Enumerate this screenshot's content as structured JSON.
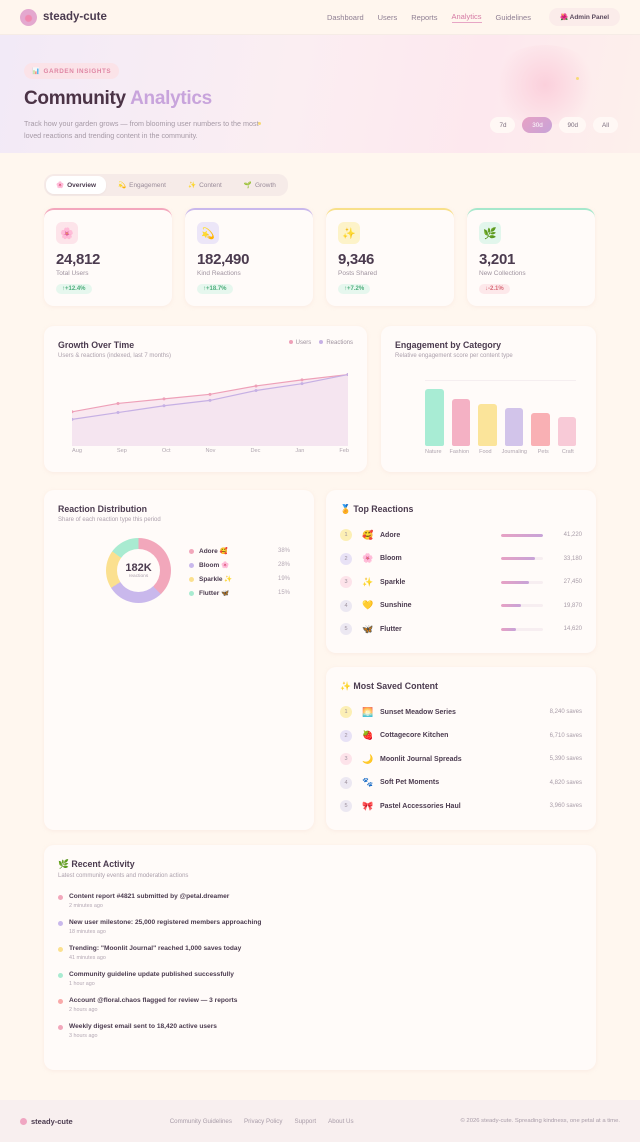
{
  "nav": {
    "brand": "steady-cute",
    "links": [
      "Dashboard",
      "Users",
      "Reports",
      "Analytics",
      "Guidelines"
    ],
    "active": "Analytics",
    "admin_button": "🌺 Admin Panel"
  },
  "hero": {
    "badge_icon": "📊",
    "badge": "GARDEN INSIGHTS",
    "title_main": "Community",
    "title_accent": "Analytics",
    "description": "Track how your garden grows — from blooming user numbers to the most-loved reactions and trending content in the community.",
    "ranges": [
      "7d",
      "30d",
      "90d",
      "All"
    ],
    "active_range": "30d"
  },
  "tabs": [
    {
      "icon": "🌸",
      "label": "Overview",
      "active": true
    },
    {
      "icon": "💫",
      "label": "Engagement"
    },
    {
      "icon": "✨",
      "label": "Content"
    },
    {
      "icon": "🌱",
      "label": "Growth"
    }
  ],
  "stats": [
    {
      "icon": "🌸",
      "value": "24,812",
      "label": "Total Users",
      "change": "↑+12.4%",
      "trend": "up",
      "color": "#f3a7bd",
      "icon_bg": "#fde4ea"
    },
    {
      "icon": "💫",
      "value": "182,490",
      "label": "Kind Reactions",
      "change": "↑+18.7%",
      "trend": "up",
      "color": "#c9b8ec",
      "icon_bg": "#ece6f8"
    },
    {
      "icon": "✨",
      "value": "9,346",
      "label": "Posts Shared",
      "change": "↑+7.2%",
      "trend": "up",
      "color": "#f8e08a",
      "icon_bg": "#fdf3c9"
    },
    {
      "icon": "🌿",
      "value": "3,201",
      "label": "New Collections",
      "change": "↓-2.1%",
      "trend": "down",
      "color": "#a6e8cc",
      "icon_bg": "#e2f6ec"
    }
  ],
  "growth": {
    "title": "Growth Over Time",
    "subtitle": "Users & reactions (indexed, last 7 months)",
    "legend": [
      {
        "label": "Users",
        "color": "#eea0b8"
      },
      {
        "label": "Reactions",
        "color": "#c6b0e4"
      }
    ]
  },
  "engagement": {
    "title": "Engagement by Category",
    "subtitle": "Relative engagement score per content type"
  },
  "chart_data": [
    {
      "type": "line",
      "title": "Growth Over Time",
      "subtitle": "Users & reactions (indexed, last 7 months)",
      "x": [
        "Aug",
        "Sep",
        "Oct",
        "Nov",
        "Dec",
        "Jan",
        "Feb"
      ],
      "series": [
        {
          "name": "Users",
          "values": [
            45,
            56,
            62,
            68,
            79,
            87,
            94
          ],
          "color": "#eea0b8"
        },
        {
          "name": "Reactions",
          "values": [
            35,
            44,
            53,
            60,
            73,
            82,
            94
          ],
          "color": "#c6b0e4"
        }
      ],
      "ylim": [
        0,
        100
      ],
      "legend_position": "top-right",
      "grid": false
    },
    {
      "type": "bar",
      "title": "Engagement by Category",
      "subtitle": "Relative engagement score per content type",
      "categories": [
        "Nature",
        "Fashion",
        "Food",
        "Journaling",
        "Pets",
        "Craft"
      ],
      "values": [
        100,
        82,
        74,
        67,
        57,
        50
      ],
      "colors": [
        "#a8ecd4",
        "#f4b1c4",
        "#fbe49a",
        "#d2c4ea",
        "#f9b0b4",
        "#f8cad7"
      ],
      "ylim": [
        0,
        100
      ],
      "grid": false
    },
    {
      "type": "pie",
      "title": "Reaction Distribution",
      "subtitle": "Share of each reaction type this period",
      "categories": [
        "Adore 🥰",
        "Bloom 🌸",
        "Sparkle ✨",
        "Flutter 🦋"
      ],
      "values": [
        38,
        28,
        19,
        15
      ],
      "colors": [
        "#f2a7bb",
        "#c9b8ec",
        "#fbe08f",
        "#a9ebd1"
      ],
      "center_value": "182K",
      "center_label": "reactions"
    }
  ],
  "distribution": {
    "title": "Reaction Distribution",
    "subtitle": "Share of each reaction type this period",
    "center_value": "182K",
    "center_label": "reactions",
    "items": [
      {
        "name": "Adore 🥰",
        "pct": "38%",
        "color": "#f2a7bb"
      },
      {
        "name": "Bloom 🌸",
        "pct": "28%",
        "color": "#c9b8ec"
      },
      {
        "name": "Sparkle ✨",
        "pct": "19%",
        "color": "#fbe08f"
      },
      {
        "name": "Flutter 🦋",
        "pct": "15%",
        "color": "#a9ebd1"
      }
    ]
  },
  "top_reactions": {
    "title": "🏅 Top Reactions",
    "items": [
      {
        "rank": "1",
        "emoji": "🥰",
        "name": "Adore",
        "value": "41,220",
        "pct": 100
      },
      {
        "rank": "2",
        "emoji": "🌸",
        "name": "Bloom",
        "value": "33,180",
        "pct": 80
      },
      {
        "rank": "3",
        "emoji": "✨",
        "name": "Sparkle",
        "value": "27,450",
        "pct": 67
      },
      {
        "rank": "4",
        "emoji": "💛",
        "name": "Sunshine",
        "value": "19,870",
        "pct": 48
      },
      {
        "rank": "5",
        "emoji": "🦋",
        "name": "Flutter",
        "value": "14,620",
        "pct": 35
      }
    ]
  },
  "most_saved": {
    "title": "✨ Most Saved Content",
    "items": [
      {
        "rank": "1",
        "emoji": "🌅",
        "name": "Sunset Meadow Series",
        "saves": "8,240 saves"
      },
      {
        "rank": "2",
        "emoji": "🍓",
        "name": "Cottagecore Kitchen",
        "saves": "6,710 saves"
      },
      {
        "rank": "3",
        "emoji": "🌙",
        "name": "Moonlit Journal Spreads",
        "saves": "5,390 saves"
      },
      {
        "rank": "4",
        "emoji": "🐾",
        "name": "Soft Pet Moments",
        "saves": "4,820 saves"
      },
      {
        "rank": "5",
        "emoji": "🎀",
        "name": "Pastel Accessories Haul",
        "saves": "3,960 saves"
      }
    ]
  },
  "rank_colors": [
    "#fcefb5",
    "#e8e2f6",
    "#fde3ea",
    "#ece8f2",
    "#ece8f2"
  ],
  "activity": {
    "title": "🌿 Recent Activity",
    "subtitle": "Latest community events and moderation actions",
    "items": [
      {
        "text": "Content report #4821 submitted by @petal.dreamer",
        "time": "2 minutes ago",
        "color": "#f2a7bb"
      },
      {
        "text": "New user milestone: 25,000 registered members approaching",
        "time": "18 minutes ago",
        "color": "#c9b8ec"
      },
      {
        "text": "Trending: \"Moonlit Journal\" reached 1,000 saves today",
        "time": "41 minutes ago",
        "color": "#fbe08f"
      },
      {
        "text": "Community guideline update published successfully",
        "time": "1 hour ago",
        "color": "#a9ebd1"
      },
      {
        "text": "Account @floral.chaos flagged for review — 3 reports",
        "time": "2 hours ago",
        "color": "#f9a9a9"
      },
      {
        "text": "Weekly digest email sent to 18,420 active users",
        "time": "3 hours ago",
        "color": "#f2a7bb"
      }
    ]
  },
  "footer": {
    "brand": "steady-cute",
    "links": [
      "Community Guidelines",
      "Privacy Policy",
      "Support",
      "About Us"
    ],
    "copyright": "© 2026 steady-cute. Spreading kindness, one petal at a time."
  }
}
